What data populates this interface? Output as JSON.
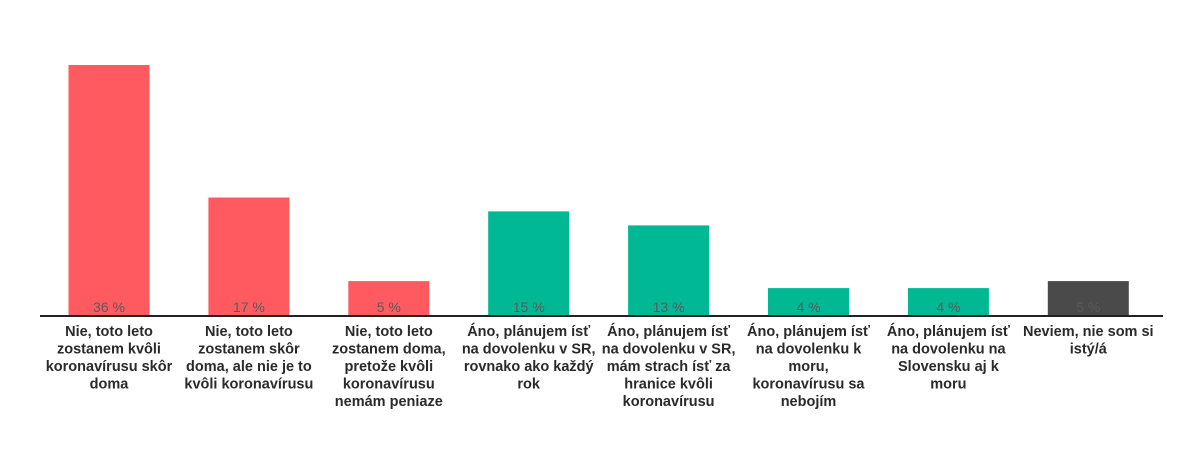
{
  "chart_data": {
    "type": "bar",
    "categories": [
      "Nie, toto leto zostanem kvôli koronavírusu skôr doma",
      "Nie, toto leto zostanem skôr doma, ale nie je to kvôli koronavírusu",
      "Nie, toto leto zostanem doma, pretože kvôli koronavírusu nemám peniaze",
      "Áno, plánujem ísť na dovolenku v SR, rovnako ako každý rok",
      "Áno, plánujem ísť na dovolenku v SR, mám strach ísť za hranice kvôli koronavírusu",
      "Áno, plánujem ísť na dovolenku k moru, koronavírusu sa nebojím",
      "Áno, plánujem ísť na dovolenku na Slovensku aj k moru",
      "Neviem, nie som si istý/á"
    ],
    "category_lines": [
      [
        "Nie, toto leto",
        "zostanem kvôli",
        "koronavírusu skôr",
        "doma"
      ],
      [
        "Nie, toto leto",
        "zostanem skôr",
        "doma, ale nie je to",
        "kvôli koronavírusu"
      ],
      [
        "Nie, toto leto",
        "zostanem doma,",
        "pretože kvôli",
        "koronavírusu",
        "nemám peniaze"
      ],
      [
        "Áno, plánujem ísť",
        "na dovolenku v SR,",
        "rovnako ako každý",
        "rok"
      ],
      [
        "Áno, plánujem ísť",
        "na dovolenku v SR,",
        "mám strach ísť za",
        "hranice kvôli",
        "koronavírusu"
      ],
      [
        "Áno, plánujem ísť",
        "na dovolenku k",
        "moru,",
        "koronavírusu sa",
        "nebojím"
      ],
      [
        "Áno, plánujem ísť",
        "na dovolenku na",
        "Slovensku aj k",
        "moru"
      ],
      [
        "Neviem, nie som si",
        "istý/á"
      ]
    ],
    "values": [
      36,
      17,
      5,
      15,
      13,
      4,
      4,
      5
    ],
    "value_labels": [
      "36 %",
      "17 %",
      "5 %",
      "15 %",
      "13 %",
      "4 %",
      "4 %",
      "5 %"
    ],
    "colors": [
      "#ff5a5f",
      "#ff5a5f",
      "#ff5a5f",
      "#00b894",
      "#00b894",
      "#00b894",
      "#00b894",
      "#4a4a4a"
    ],
    "ylim": [
      0,
      36
    ],
    "grid": false,
    "legend": "none",
    "title": "",
    "xlabel": "",
    "ylabel": ""
  }
}
